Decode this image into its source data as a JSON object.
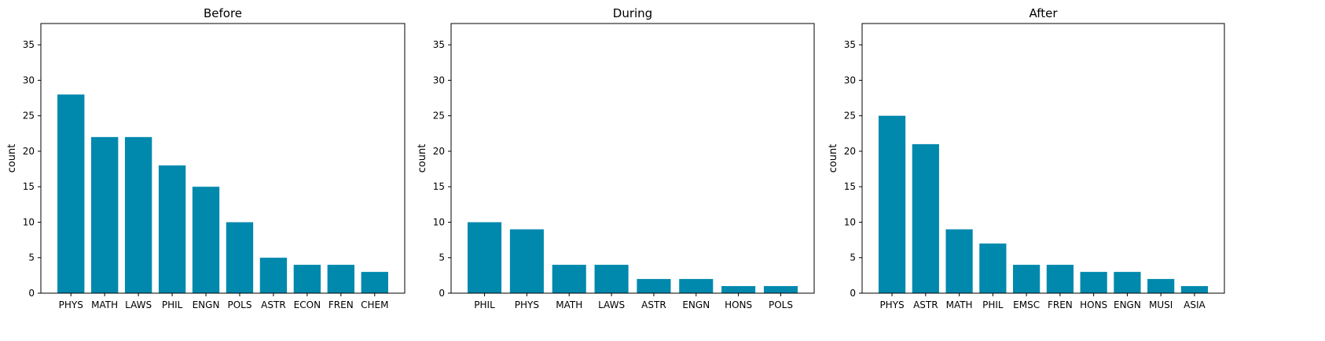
{
  "chart_data": [
    {
      "type": "bar",
      "title": "Before",
      "xlabel": "",
      "ylabel": "count",
      "ylim": [
        0,
        38
      ],
      "yticks": [
        0,
        5,
        10,
        15,
        20,
        25,
        30,
        35
      ],
      "categories": [
        "PHYS",
        "MATH",
        "LAWS",
        "PHIL",
        "ENGN",
        "POLS",
        "ASTR",
        "ECON",
        "FREN",
        "CHEM"
      ],
      "values": [
        28,
        22,
        22,
        18,
        15,
        10,
        5,
        4,
        4,
        3
      ],
      "grid": false,
      "color": "#0088ad"
    },
    {
      "type": "bar",
      "title": "During",
      "xlabel": "",
      "ylabel": "count",
      "ylim": [
        0,
        38
      ],
      "yticks": [
        0,
        5,
        10,
        15,
        20,
        25,
        30,
        35
      ],
      "categories": [
        "PHIL",
        "PHYS",
        "MATH",
        "LAWS",
        "ASTR",
        "ENGN",
        "HONS",
        "POLS"
      ],
      "values": [
        10,
        9,
        4,
        4,
        2,
        2,
        1,
        1
      ],
      "grid": false,
      "color": "#0088ad"
    },
    {
      "type": "bar",
      "title": "After",
      "xlabel": "",
      "ylabel": "count",
      "ylim": [
        0,
        38
      ],
      "yticks": [
        0,
        5,
        10,
        15,
        20,
        25,
        30,
        35
      ],
      "categories": [
        "PHYS",
        "ASTR",
        "MATH",
        "PHIL",
        "EMSC",
        "FREN",
        "HONS",
        "ENGN",
        "MUSI",
        "ASIA"
      ],
      "values": [
        25,
        21,
        9,
        7,
        4,
        4,
        3,
        3,
        2,
        1
      ],
      "grid": false,
      "color": "#0088ad"
    }
  ]
}
